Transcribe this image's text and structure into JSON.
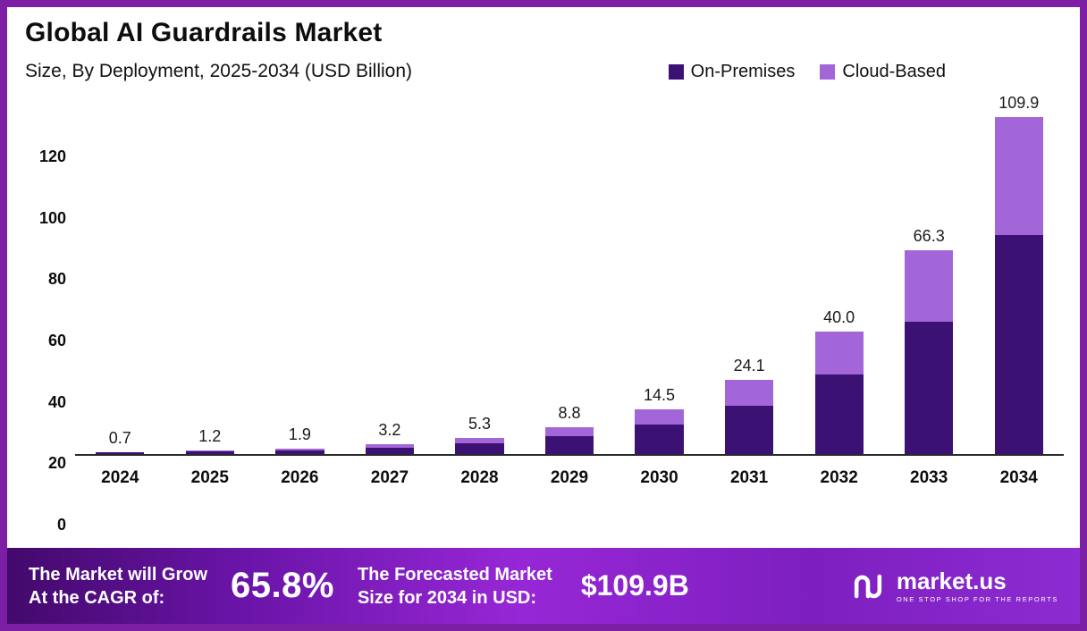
{
  "header": {
    "title": "Global AI Guardrails Market",
    "subtitle": "Size, By Deployment, 2025-2034 (USD Billion)"
  },
  "chart_data": {
    "type": "bar",
    "stacked": true,
    "title": "Global AI Guardrails Market",
    "subtitle": "Size, By Deployment, 2025-2034 (USD Billion)",
    "categories": [
      "2024",
      "2025",
      "2026",
      "2027",
      "2028",
      "2029",
      "2030",
      "2031",
      "2032",
      "2033",
      "2034"
    ],
    "series": [
      {
        "name": "On-Premises",
        "color": "#3b1173",
        "values": [
          0.45,
          0.8,
          1.25,
          2.1,
          3.5,
          5.8,
          9.6,
          15.6,
          26.0,
          43.0,
          71.5
        ]
      },
      {
        "name": "Cloud-Based",
        "color": "#a266d8",
        "values": [
          0.25,
          0.4,
          0.65,
          1.1,
          1.8,
          3.0,
          4.9,
          8.5,
          14.0,
          23.3,
          38.4
        ]
      }
    ],
    "totals": [
      0.7,
      1.2,
      1.9,
      3.2,
      5.3,
      8.8,
      14.5,
      24.1,
      40.0,
      66.3,
      109.9
    ],
    "total_labels": [
      "0.7",
      "1.2",
      "1.9",
      "3.2",
      "5.3",
      "8.8",
      "14.5",
      "24.1",
      "40.0",
      "66.3",
      "109.9"
    ],
    "xlabel": "",
    "ylabel": "",
    "ylim": [
      0,
      120
    ],
    "yticks": [
      0,
      20,
      40,
      60,
      80,
      100,
      120
    ],
    "grid": false,
    "legend_position": "top-right"
  },
  "footer": {
    "cagr_label_line1": "The Market will Grow",
    "cagr_label_line2": "At the CAGR of:",
    "cagr_value": "65.8%",
    "forecast_label_line1": "The Forecasted Market",
    "forecast_label_line2": "Size for 2034 in USD:",
    "forecast_value": "$109.9B",
    "logo_name": "market.us",
    "logo_tagline": "ONE STOP SHOP FOR THE REPORTS"
  },
  "colors": {
    "frame_border": "#7d1fa5",
    "on_premises": "#3b1173",
    "cloud_based": "#a266d8"
  }
}
